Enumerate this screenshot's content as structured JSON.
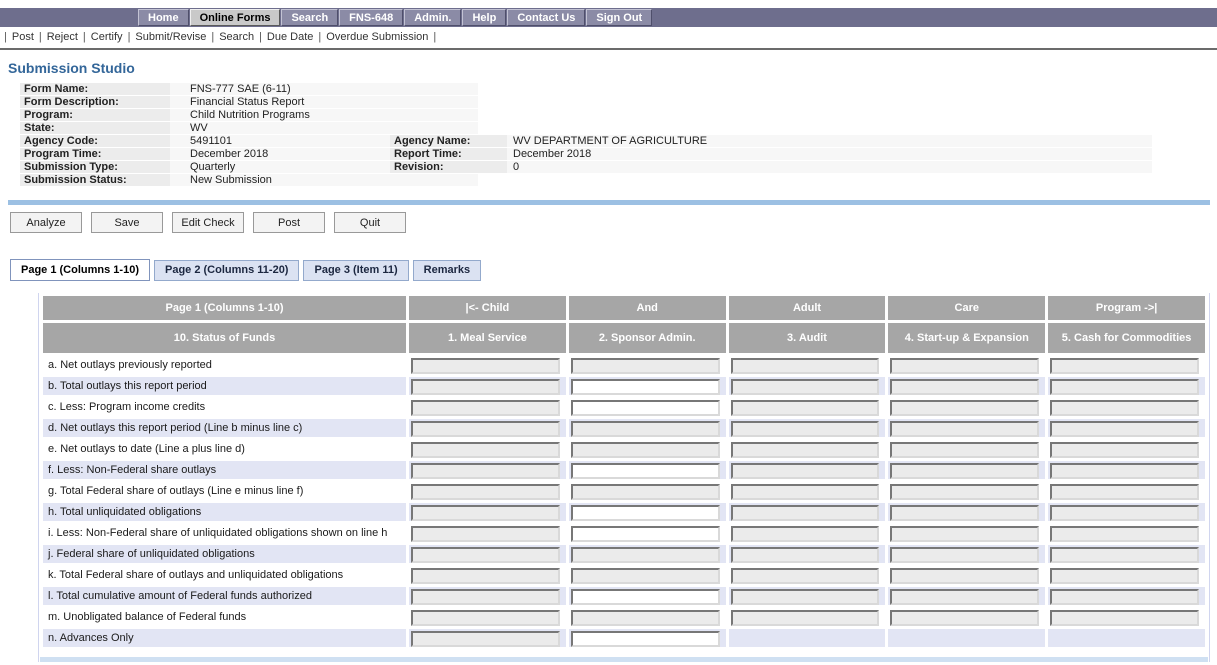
{
  "colors": {
    "nav_bar_bg": "#6e6e8d",
    "nav_btn_bg": "#8b8ba6",
    "nav_btn_active_bg": "#c9c9c9",
    "title_blue": "#336699",
    "divider_blue": "#9cc0e3",
    "bottom_bar_blue": "#cfe0f2",
    "tab_inactive_bg": "#dbe2f2",
    "grid_header_gray": "#a6a6a6",
    "row_lavender": "#e2e5f4",
    "input_readonly_bg": "#ebebeb",
    "input_editable_bg": "#ffffff"
  },
  "top_nav": {
    "items": [
      {
        "label": "Home",
        "active": false
      },
      {
        "label": "Online Forms",
        "active": true
      },
      {
        "label": "Search",
        "active": false
      },
      {
        "label": "FNS-648",
        "active": false
      },
      {
        "label": "Admin.",
        "active": false
      },
      {
        "label": "Help",
        "active": false
      },
      {
        "label": "Contact Us",
        "active": false
      },
      {
        "label": "Sign Out",
        "active": false
      }
    ]
  },
  "menu_bar": {
    "items": [
      "Post",
      "Reject",
      "Certify",
      "Submit/Revise",
      "Search",
      "Due Date",
      "Overdue Submission"
    ]
  },
  "page": {
    "title": "Submission Studio"
  },
  "metadata": {
    "rows": [
      {
        "label": "Form Name:",
        "value": "FNS-777 SAE (6-11)"
      },
      {
        "label": "Form Description:",
        "value": "Financial Status Report"
      },
      {
        "label": "Program:",
        "value": "Child Nutrition Programs"
      },
      {
        "label": "State:",
        "value": "WV"
      },
      {
        "label": "Agency Code:",
        "value": "5491101",
        "label2": "Agency Name:",
        "value2": "WV DEPARTMENT OF AGRICULTURE"
      },
      {
        "label": "Program Time:",
        "value": "December 2018",
        "label2": "Report Time:",
        "value2": "December 2018"
      },
      {
        "label": "Submission Type:",
        "value": "Quarterly",
        "label2": "Revision:",
        "value2": "0"
      },
      {
        "label": "Submission Status:",
        "value": "New Submission"
      }
    ]
  },
  "toolbar": {
    "buttons": [
      "Analyze",
      "Save",
      "Edit Check",
      "Post",
      "Quit"
    ]
  },
  "tabs": [
    {
      "label": "Page 1 (Columns 1-10)",
      "active": true
    },
    {
      "label": "Page 2 (Columns 11-20)",
      "active": false
    },
    {
      "label": "Page 3 (Item 11)",
      "active": false
    },
    {
      "label": "Remarks",
      "active": false
    }
  ],
  "grid": {
    "header_row1": [
      "Page 1 (Columns 1-10)",
      "|<- Child",
      "And",
      "Adult",
      "Care",
      "Program ->|"
    ],
    "header_row2": [
      "10. Status of Funds",
      "1. Meal Service",
      "2. Sponsor Admin.",
      "3. Audit",
      "4. Start-up & Expansion",
      "5. Cash for Commodities"
    ],
    "rows": [
      {
        "label": "a. Net outlays previously reported",
        "cells": [
          {
            "state": "readonly",
            "value": ""
          },
          {
            "state": "readonly",
            "value": ""
          },
          {
            "state": "readonly",
            "value": ""
          },
          {
            "state": "readonly",
            "value": ""
          },
          {
            "state": "readonly",
            "value": ""
          }
        ]
      },
      {
        "label": "b. Total outlays this report period",
        "cells": [
          {
            "state": "readonly",
            "value": ""
          },
          {
            "state": "editable",
            "value": ""
          },
          {
            "state": "readonly",
            "value": ""
          },
          {
            "state": "readonly",
            "value": ""
          },
          {
            "state": "readonly",
            "value": ""
          }
        ]
      },
      {
        "label": "c. Less: Program income credits",
        "cells": [
          {
            "state": "readonly",
            "value": ""
          },
          {
            "state": "editable",
            "value": ""
          },
          {
            "state": "readonly",
            "value": ""
          },
          {
            "state": "readonly",
            "value": ""
          },
          {
            "state": "readonly",
            "value": ""
          }
        ]
      },
      {
        "label": "d. Net outlays this report period (Line b minus line c)",
        "cells": [
          {
            "state": "readonly",
            "value": ""
          },
          {
            "state": "readonly",
            "value": ""
          },
          {
            "state": "readonly",
            "value": ""
          },
          {
            "state": "readonly",
            "value": ""
          },
          {
            "state": "readonly",
            "value": ""
          }
        ]
      },
      {
        "label": "e. Net outlays to date (Line a plus line d)",
        "cells": [
          {
            "state": "readonly",
            "value": ""
          },
          {
            "state": "readonly",
            "value": ""
          },
          {
            "state": "readonly",
            "value": ""
          },
          {
            "state": "readonly",
            "value": ""
          },
          {
            "state": "readonly",
            "value": ""
          }
        ]
      },
      {
        "label": "f. Less: Non-Federal share outlays",
        "cells": [
          {
            "state": "readonly",
            "value": ""
          },
          {
            "state": "editable",
            "value": ""
          },
          {
            "state": "readonly",
            "value": ""
          },
          {
            "state": "readonly",
            "value": ""
          },
          {
            "state": "readonly",
            "value": ""
          }
        ]
      },
      {
        "label": "g. Total Federal share of outlays (Line e minus line f)",
        "cells": [
          {
            "state": "readonly",
            "value": ""
          },
          {
            "state": "readonly",
            "value": ""
          },
          {
            "state": "readonly",
            "value": ""
          },
          {
            "state": "readonly",
            "value": ""
          },
          {
            "state": "readonly",
            "value": ""
          }
        ]
      },
      {
        "label": "h. Total unliquidated obligations",
        "cells": [
          {
            "state": "readonly",
            "value": ""
          },
          {
            "state": "editable",
            "value": ""
          },
          {
            "state": "readonly",
            "value": ""
          },
          {
            "state": "readonly",
            "value": ""
          },
          {
            "state": "readonly",
            "value": ""
          }
        ]
      },
      {
        "label": "i. Less: Non-Federal share of unliquidated obligations shown on line h",
        "cells": [
          {
            "state": "readonly",
            "value": ""
          },
          {
            "state": "editable",
            "value": ""
          },
          {
            "state": "readonly",
            "value": ""
          },
          {
            "state": "readonly",
            "value": ""
          },
          {
            "state": "readonly",
            "value": ""
          }
        ]
      },
      {
        "label": "j. Federal share of unliquidated obligations",
        "cells": [
          {
            "state": "readonly",
            "value": ""
          },
          {
            "state": "readonly",
            "value": ""
          },
          {
            "state": "readonly",
            "value": ""
          },
          {
            "state": "readonly",
            "value": ""
          },
          {
            "state": "readonly",
            "value": ""
          }
        ]
      },
      {
        "label": "k. Total Federal share of outlays and unliquidated obligations",
        "cells": [
          {
            "state": "readonly",
            "value": ""
          },
          {
            "state": "readonly",
            "value": ""
          },
          {
            "state": "readonly",
            "value": ""
          },
          {
            "state": "readonly",
            "value": ""
          },
          {
            "state": "readonly",
            "value": ""
          }
        ]
      },
      {
        "label": "l. Total cumulative amount of Federal funds authorized",
        "cells": [
          {
            "state": "readonly",
            "value": ""
          },
          {
            "state": "editable",
            "value": ""
          },
          {
            "state": "readonly",
            "value": ""
          },
          {
            "state": "readonly",
            "value": ""
          },
          {
            "state": "readonly",
            "value": ""
          }
        ]
      },
      {
        "label": "m. Unobligated balance of Federal funds",
        "cells": [
          {
            "state": "readonly",
            "value": ""
          },
          {
            "state": "readonly",
            "value": ""
          },
          {
            "state": "readonly",
            "value": ""
          },
          {
            "state": "readonly",
            "value": ""
          },
          {
            "state": "readonly",
            "value": ""
          }
        ]
      },
      {
        "label": "n. Advances Only",
        "cells": [
          {
            "state": "readonly",
            "value": ""
          },
          {
            "state": "editable",
            "value": ""
          },
          {
            "state": "none",
            "value": ""
          },
          {
            "state": "none",
            "value": ""
          },
          {
            "state": "none",
            "value": ""
          }
        ]
      }
    ]
  }
}
